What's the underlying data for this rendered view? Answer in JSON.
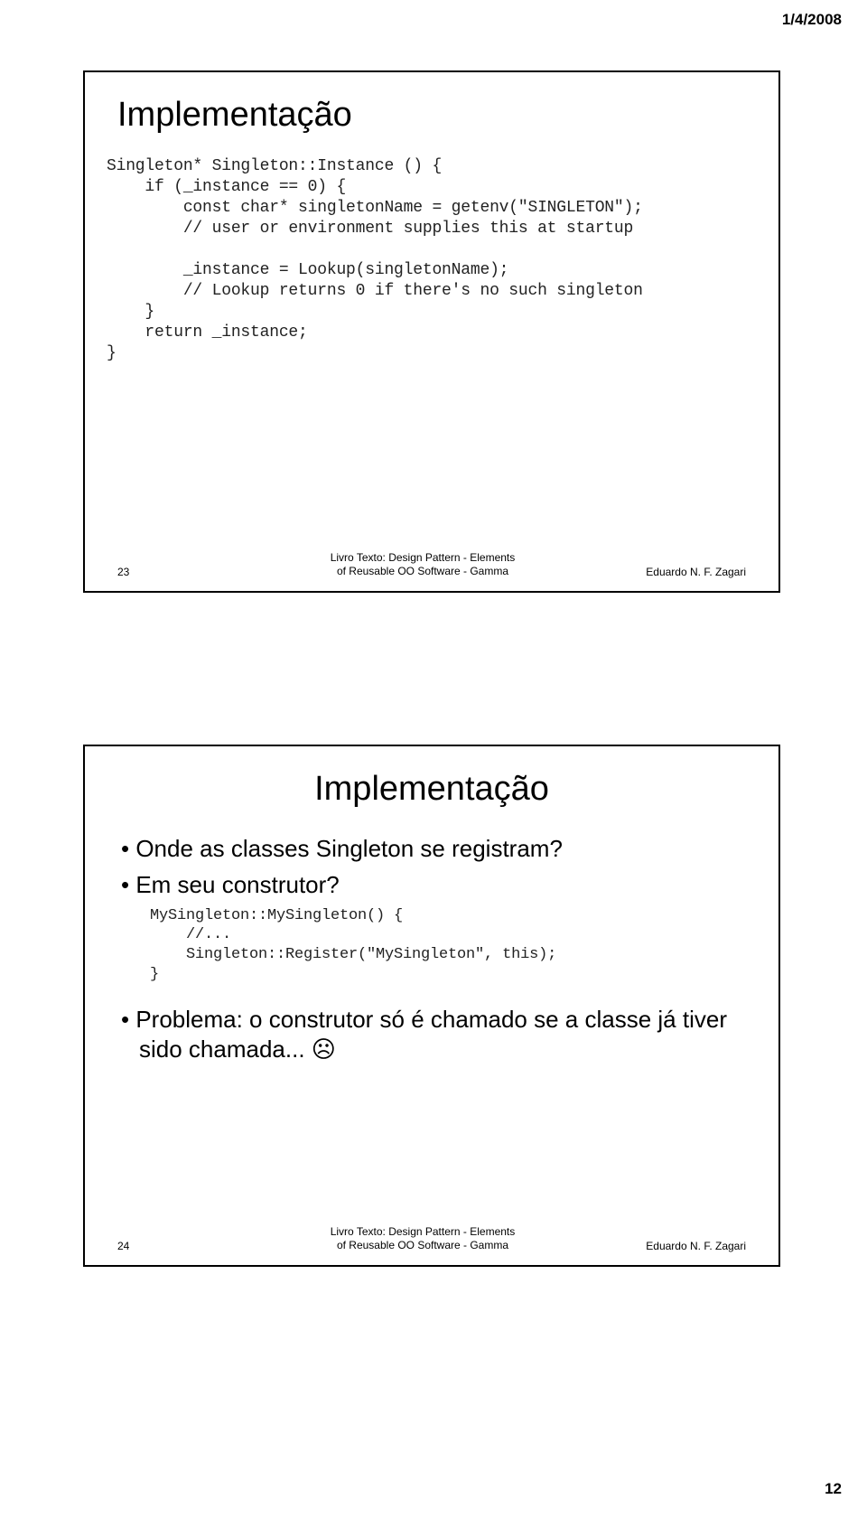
{
  "page": {
    "date": "1/4/2008",
    "number": "12"
  },
  "slide1": {
    "number": "23",
    "title": "Implementação",
    "code": "Singleton* Singleton::Instance () {\n    if (_instance == 0) {\n        const char* singletonName = getenv(\"SINGLETON\");\n        // user or environment supplies this at startup\n\n        _instance = Lookup(singletonName);\n        // Lookup returns 0 if there's no such singleton\n    }\n    return _instance;\n}",
    "footer_ref_line1": "Livro Texto: Design Pattern  - Elements",
    "footer_ref_line2": "of Reusable OO Software - Gamma",
    "footer_author": "Eduardo N. F. Zagari"
  },
  "slide2": {
    "number": "24",
    "title": "Implementação",
    "bullet1": "Onde as classes Singleton se registram?",
    "bullet2": "Em seu construtor?",
    "code": "MySingleton::MySingleton() {\n    //...\n    Singleton::Register(\"MySingleton\", this);\n}",
    "bullet3_text": "Problema: o construtor só é chamado se a classe já tiver sido chamada... ",
    "bullet3_emoji": "☹",
    "footer_ref_line1": "Livro Texto: Design Pattern  - Elements",
    "footer_ref_line2": "of Reusable OO Software - Gamma",
    "footer_author": "Eduardo N. F. Zagari"
  }
}
